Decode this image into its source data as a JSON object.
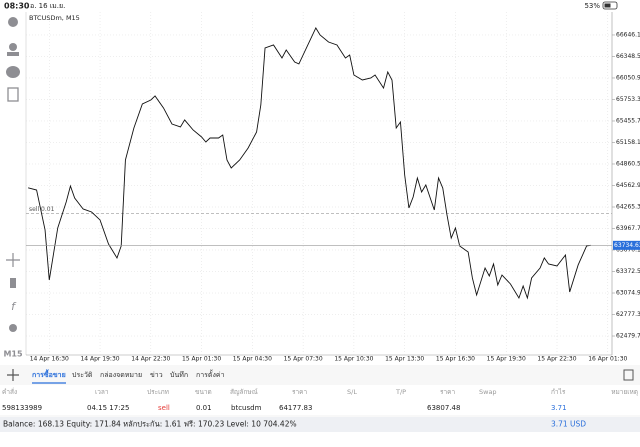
{
  "status_bar": {
    "time": "08:30",
    "date": "อ. 16 เม.ย.",
    "battery": "53%"
  },
  "chart_data": {
    "type": "line",
    "title": "BTCUSDm, M15",
    "color": "#111111",
    "x": [
      -5,
      -3,
      -1,
      0,
      2,
      4,
      5,
      6,
      8,
      10,
      12,
      14,
      16,
      17,
      18,
      20,
      22,
      24,
      25,
      27,
      29,
      31,
      32,
      34,
      36,
      37,
      38,
      40,
      41,
      42,
      43,
      45,
      47,
      49,
      50,
      51,
      53,
      55,
      56,
      58,
      59,
      61,
      63,
      64,
      66,
      68,
      70,
      71,
      72,
      74,
      76,
      77,
      79,
      80,
      81,
      82,
      83,
      84,
      85,
      86,
      87,
      88,
      89,
      91,
      92,
      93,
      94,
      95,
      96,
      97,
      99,
      100,
      101,
      103,
      104,
      105,
      106,
      107,
      109,
      111,
      112,
      113,
      114,
      116,
      117,
      118,
      120,
      122,
      123,
      125,
      127,
      128
    ],
    "values": [
      64530,
      64500,
      63950,
      63255,
      63975,
      64335,
      64556,
      64390,
      64238,
      64196,
      64086,
      63753,
      63560,
      63726,
      64916,
      65359,
      65691,
      65746,
      65802,
      65636,
      65414,
      65373,
      65470,
      65331,
      65234,
      65165,
      65220,
      65220,
      65262,
      64916,
      64805,
      64916,
      65082,
      65304,
      65677,
      66466,
      66508,
      66328,
      66438,
      66272,
      66245,
      66494,
      66743,
      66646,
      66549,
      66508,
      66328,
      66369,
      66092,
      66023,
      66051,
      66092,
      65912,
      66134,
      66023,
      65359,
      65442,
      64708,
      64252,
      64404,
      64667,
      64473,
      64570,
      64224,
      64667,
      64528,
      64155,
      63836,
      63975,
      63726,
      63643,
      63283,
      63048,
      63421,
      63311,
      63477,
      63186,
      63324,
      63200,
      63006,
      63172,
      63006,
      63283,
      63421,
      63560,
      63477,
      63449,
      63601,
      63089,
      63463,
      63726,
      63734.63
    ],
    "xlim": [
      -5.5,
      133
    ],
    "ylim": [
      62217,
      66964
    ],
    "grid": true,
    "xticks": [
      {
        "value": 0,
        "label": "14 Apr 16:30"
      },
      {
        "value": 12,
        "label": "14 Apr 19:30"
      },
      {
        "value": 24,
        "label": "14 Apr 22:30"
      },
      {
        "value": 36,
        "label": "15 Apr 01:30"
      },
      {
        "value": 48,
        "label": "15 Apr 04:30"
      },
      {
        "value": 60,
        "label": "15 Apr 07:30"
      },
      {
        "value": 72,
        "label": "15 Apr 10:30"
      },
      {
        "value": 84,
        "label": "15 Apr 13:30"
      },
      {
        "value": 96,
        "label": "15 Apr 16:30"
      },
      {
        "value": 108,
        "label": "15 Apr 19:30"
      },
      {
        "value": 120,
        "label": "15 Apr 22:30"
      },
      {
        "value": 132,
        "label": "16 Apr 01:30"
      }
    ],
    "yticks": [
      {
        "value": 66646.1,
        "label": "66646.10"
      },
      {
        "value": 66348.5,
        "label": "66348.50"
      },
      {
        "value": 66050.9,
        "label": "66050.90"
      },
      {
        "value": 65753.3,
        "label": "65753.30"
      },
      {
        "value": 65455.7,
        "label": "65455.70"
      },
      {
        "value": 65158.1,
        "label": "65158.10"
      },
      {
        "value": 64860.5,
        "label": "64860.50"
      },
      {
        "value": 64562.9,
        "label": "64562.90"
      },
      {
        "value": 64265.3,
        "label": "64265.30"
      },
      {
        "value": 63967.7,
        "label": "63967.70"
      },
      {
        "value": 63670.1,
        "label": "63670.10"
      },
      {
        "value": 63372.5,
        "label": "63372.50"
      },
      {
        "value": 63074.9,
        "label": "63074.90"
      },
      {
        "value": 62777.3,
        "label": "62777.30"
      },
      {
        "value": 62479.7,
        "label": "62479.70"
      }
    ],
    "sell_line": {
      "label": "sell 0.01",
      "value": 64177.83
    },
    "price_line": 63734.63
  },
  "sidebar": {
    "timeframe": "M15"
  },
  "tabs": [
    "การซื้อขาย",
    "ประวัติ",
    "กล่องจดหมาย",
    "ข่าว",
    "บันทึก",
    "การตั้งค่า"
  ],
  "table": {
    "headers": [
      "คำสั่ง",
      "เวลา",
      "ประเภท",
      "ขนาด",
      "สัญลักษณ์",
      "ราคา",
      "S/L",
      "T/P",
      "ราคา",
      "Swap",
      "กำไร",
      "หมายเหตุ"
    ],
    "row": {
      "order": "598133989",
      "time": "04.15 17:25",
      "type": "sell",
      "volume": "0.01",
      "symbol": "btcusdm",
      "open_price": "64177.83",
      "price": "63807.48",
      "profit": "3.71"
    }
  },
  "summary": {
    "text": "Balance: 168.13 Equity: 171.84 หลักประกัน: 1.61 ฟรี: 170.23 Level: 10 704.42%",
    "profit": "3.71",
    "currency": "USD"
  }
}
